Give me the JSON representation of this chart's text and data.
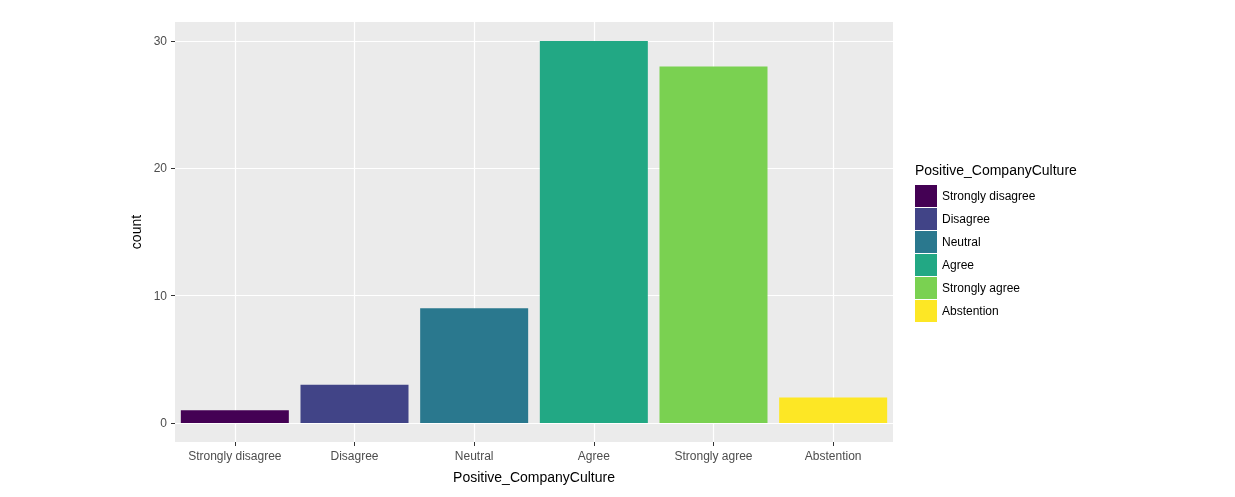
{
  "chart_data": {
    "type": "bar",
    "xlabel": "Positive_CompanyCulture",
    "ylabel": "count",
    "legend_title": "Positive_CompanyCulture",
    "categories": [
      "Strongly disagree",
      "Disagree",
      "Neutral",
      "Agree",
      "Strongly agree",
      "Abstention"
    ],
    "series": [
      {
        "name": "Strongly disagree",
        "color": "#440154",
        "values": [
          1,
          null,
          null,
          null,
          null,
          null
        ]
      },
      {
        "name": "Disagree",
        "color": "#414487",
        "values": [
          null,
          3,
          null,
          null,
          null,
          null
        ]
      },
      {
        "name": "Neutral",
        "color": "#2a788e",
        "values": [
          null,
          null,
          9,
          null,
          null,
          null
        ]
      },
      {
        "name": "Agree",
        "color": "#22a884",
        "values": [
          null,
          null,
          null,
          30,
          null,
          null
        ]
      },
      {
        "name": "Strongly agree",
        "color": "#7ad151",
        "values": [
          null,
          null,
          null,
          null,
          28,
          null
        ]
      },
      {
        "name": "Abstention",
        "color": "#fde725",
        "values": [
          null,
          null,
          null,
          null,
          null,
          2
        ]
      }
    ],
    "ylim": [
      -1.5,
      31.5
    ],
    "yticks": [
      0,
      10,
      20,
      30
    ],
    "grid": true,
    "legend": "right"
  }
}
